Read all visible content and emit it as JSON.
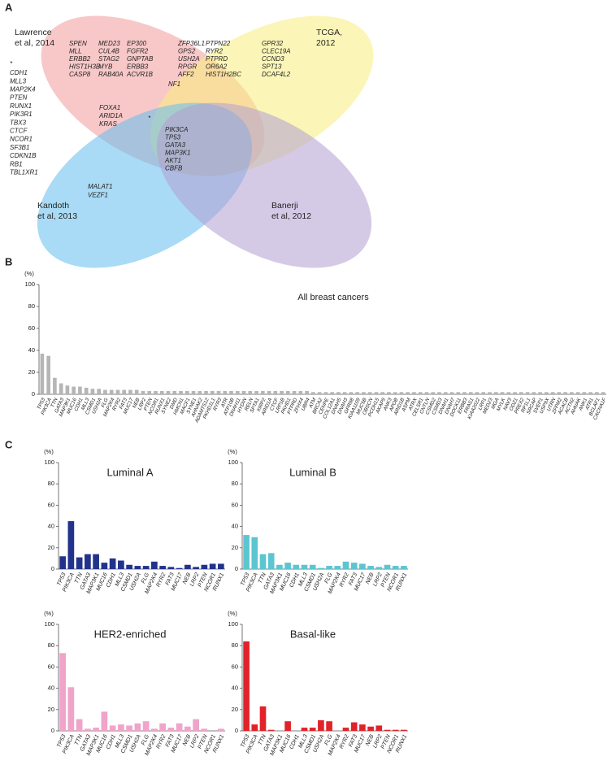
{
  "panel_labels": [
    "A",
    "B",
    "C"
  ],
  "venn": {
    "sets": [
      {
        "label": [
          "Lawrence",
          "et al, 2014"
        ],
        "color": "#f39a9a"
      },
      {
        "label": [
          "TCGA,",
          "2012"
        ],
        "color": "#f7ee7e"
      },
      {
        "label": [
          "Kandoth",
          "et al, 2013"
        ],
        "color": "#62bdee"
      },
      {
        "label": [
          "Banerji",
          "et al, 2012"
        ],
        "color": "#b29ed2"
      }
    ],
    "outside": {
      "marker": "*",
      "genes": [
        "CDH1",
        "MLL3",
        "MAP2K4",
        "PTEN",
        "RUNX1",
        "PIK3R1",
        "TBX3",
        "CTCF",
        "NCOR1",
        "SF3B1",
        "CDKN1B",
        "RB1",
        "TBL1XR1"
      ]
    },
    "lawrence_only": [
      [
        "SPEN",
        "MLL",
        "ERBB2",
        "HIST1H3B",
        "CASP8"
      ],
      [
        "MED23",
        "CUL4B",
        "STAG2",
        "MYB",
        "RAB40A"
      ],
      [
        "EP300",
        "FGFR2",
        "GNPTAB",
        "ERBB3",
        "ACVR1B"
      ]
    ],
    "tcga_only": [
      [
        "ZFP36L1",
        "GPS2",
        "USH2A",
        "RPGR",
        "AFF2"
      ],
      [
        "PTPN22",
        "RYR2",
        "PTPRD",
        "OR6A2",
        "HIST1H2BC"
      ],
      [
        "GPR32",
        "CLEC19A",
        "CCND3",
        "SPT13",
        "DCAF4L2"
      ]
    ],
    "lawrence_tcga": [
      "NF1"
    ],
    "lawrence_kandoth": [
      "FOXA1",
      "ARID1A",
      "KRAS"
    ],
    "star": "*",
    "all": [
      "PIK3CA",
      "TP53",
      "GATA3",
      "MAP3K1",
      "AKT1",
      "CBFB"
    ],
    "kandoth_only": [
      "MALAT1",
      "VEZF1"
    ]
  },
  "chart_data": [
    {
      "type": "bar",
      "title": "All breast cancers",
      "y_label": "(%)",
      "categories": [
        "TP53",
        "PIK3CA",
        "TTN",
        "GATA3",
        "MAP3K1",
        "MUC16",
        "CDH1",
        "MLL3",
        "CSMD1",
        "USH2A",
        "FLG",
        "MAP2K4",
        "RYR2",
        "FAT3",
        "MUC17",
        "NEB",
        "LRP2",
        "PTEN",
        "NCOR1",
        "RUNX1",
        "SYNE2",
        "DMD",
        "HMCN1",
        "MACF1",
        "SYNE1",
        "AHNAK2",
        "ADAMTS12",
        "PKHD1L1",
        "RYR3",
        "ATR",
        "ATP10B",
        "DNAH11",
        "HYDIN",
        "RELN",
        "SPTA1",
        "XIRP2",
        "ARID1A",
        "CTCF",
        "LRP1B",
        "PKHD1",
        "PTPRD",
        "ZFHX4",
        "UBR4",
        "ATM",
        "BRCA2",
        "CENPE",
        "COL12A1",
        "DNAH5",
        "DNAH3",
        "GPR98",
        "KIAA1109",
        "MUC5B",
        "OBSCN",
        "PCDH15",
        "AKAP9",
        "ANK3",
        "APOB",
        "ARID1B",
        "ASPM",
        "ATRX",
        "CELSR1",
        "CNTLN",
        "CSMD2",
        "CSMD3",
        "DNAH1",
        "DNAH7",
        "DOCK11",
        "ERBB3",
        "FRAS1",
        "KIAA2022",
        "LRP1",
        "MED23",
        "MGA",
        "MYLK",
        "NAV3",
        "ODZ1",
        "PREX2",
        "RP1L1",
        "SRCAP",
        "SVEP1",
        "USP9X",
        "UTRN",
        "ZFPM2",
        "ACACB",
        "ACTN2",
        "AHNAK",
        "ANK1",
        "ATR1",
        "BCLAF1",
        "CACNA1F"
      ],
      "values": [
        37,
        35,
        15,
        10,
        8,
        7,
        7,
        6,
        5,
        5,
        4,
        4,
        4,
        4,
        4,
        4,
        3,
        3,
        3,
        3,
        3,
        3,
        3,
        3,
        3,
        3,
        3,
        3,
        3,
        3,
        3,
        3,
        3,
        3,
        3,
        3,
        3,
        3,
        3,
        3,
        3,
        3,
        3,
        2,
        2,
        2,
        2,
        2,
        2,
        2,
        2,
        2,
        2,
        2,
        2,
        2,
        2,
        2,
        2,
        2,
        2,
        2,
        2,
        2,
        2,
        2,
        2,
        2,
        2,
        2,
        2,
        2,
        2,
        2,
        2,
        2,
        2,
        2,
        2,
        2,
        2,
        2,
        2,
        2,
        2,
        2,
        2,
        2,
        2,
        2
      ],
      "color": "#b5b5b5",
      "ylim": [
        0,
        100
      ],
      "yticks": [
        0,
        20,
        40,
        60,
        80,
        100
      ]
    },
    {
      "type": "bar",
      "title": "Luminal A",
      "y_label": "(%)",
      "categories": [
        "TP53",
        "PIK3CA",
        "TTN",
        "GATA3",
        "MAP3K1",
        "MUC16",
        "CDH1",
        "MLL3",
        "CSMD1",
        "USH2A",
        "FLG",
        "MAP2K4",
        "RYR2",
        "FAT3",
        "MUC17",
        "NEB",
        "LRP2",
        "PTEN",
        "NCOR1",
        "RUNX1"
      ],
      "values": [
        12,
        45,
        11,
        14,
        14,
        6,
        10,
        8,
        4,
        3,
        3,
        7,
        3,
        2,
        1,
        4,
        2,
        4,
        5,
        5
      ],
      "color": "#22338c",
      "ylim": [
        0,
        100
      ],
      "yticks": [
        0,
        20,
        40,
        60,
        80,
        100
      ]
    },
    {
      "type": "bar",
      "title": "Luminal B",
      "y_label": "(%)",
      "categories": [
        "TP53",
        "PIK3CA",
        "TTN",
        "GATA3",
        "MAP3K1",
        "MUC16",
        "CDH1",
        "MLL3",
        "CSMD1",
        "USH2A",
        "FLG",
        "MAP2K4",
        "RYR2",
        "FAT3",
        "MUC17",
        "NEB",
        "LRP2",
        "PTEN",
        "NCOR1",
        "RUNX1"
      ],
      "values": [
        32,
        30,
        14,
        15,
        4,
        6,
        4,
        4,
        4,
        1,
        3,
        3,
        7,
        6,
        5,
        3,
        2,
        4,
        3,
        3
      ],
      "color": "#5cc5d0",
      "ylim": [
        0,
        100
      ],
      "yticks": [
        0,
        20,
        40,
        60,
        80,
        100
      ]
    },
    {
      "type": "bar",
      "title": "HER2-enriched",
      "y_label": "(%)",
      "categories": [
        "TP53",
        "PIK3CA",
        "TTN",
        "GATA3",
        "MAP3K1",
        "MUC16",
        "CDH1",
        "MLL3",
        "CSMD1",
        "USH2A",
        "FLG",
        "MAP2K4",
        "RYR2",
        "FAT3",
        "MUC17",
        "NEB",
        "LRP2",
        "PTEN",
        "NCOR1",
        "RUNX1"
      ],
      "values": [
        73,
        41,
        11,
        2,
        3,
        18,
        5,
        6,
        5,
        7,
        9,
        2,
        7,
        3,
        7,
        4,
        11,
        2,
        0,
        2
      ],
      "color": "#f0a4c9",
      "ylim": [
        0,
        100
      ],
      "yticks": [
        0,
        20,
        40,
        60,
        80,
        100
      ]
    },
    {
      "type": "bar",
      "title": "Basal-like",
      "y_label": "(%)",
      "categories": [
        "TP53",
        "PIK3CA",
        "TTN",
        "GATA3",
        "MAP3K1",
        "MUC16",
        "CDH1",
        "MLL3",
        "CSMD1",
        "USH2A",
        "FLG",
        "MAP2K4",
        "RYR2",
        "FAT3",
        "MUC17",
        "NEB",
        "LRP2",
        "PTEN",
        "NCOR1",
        "RUNX1"
      ],
      "values": [
        84,
        6,
        23,
        1,
        0,
        9,
        0,
        3,
        3,
        10,
        9,
        0,
        3,
        8,
        6,
        4,
        5,
        1,
        1,
        1
      ],
      "color": "#e2222a",
      "ylim": [
        0,
        100
      ],
      "yticks": [
        0,
        20,
        40,
        60,
        80,
        100
      ]
    }
  ]
}
